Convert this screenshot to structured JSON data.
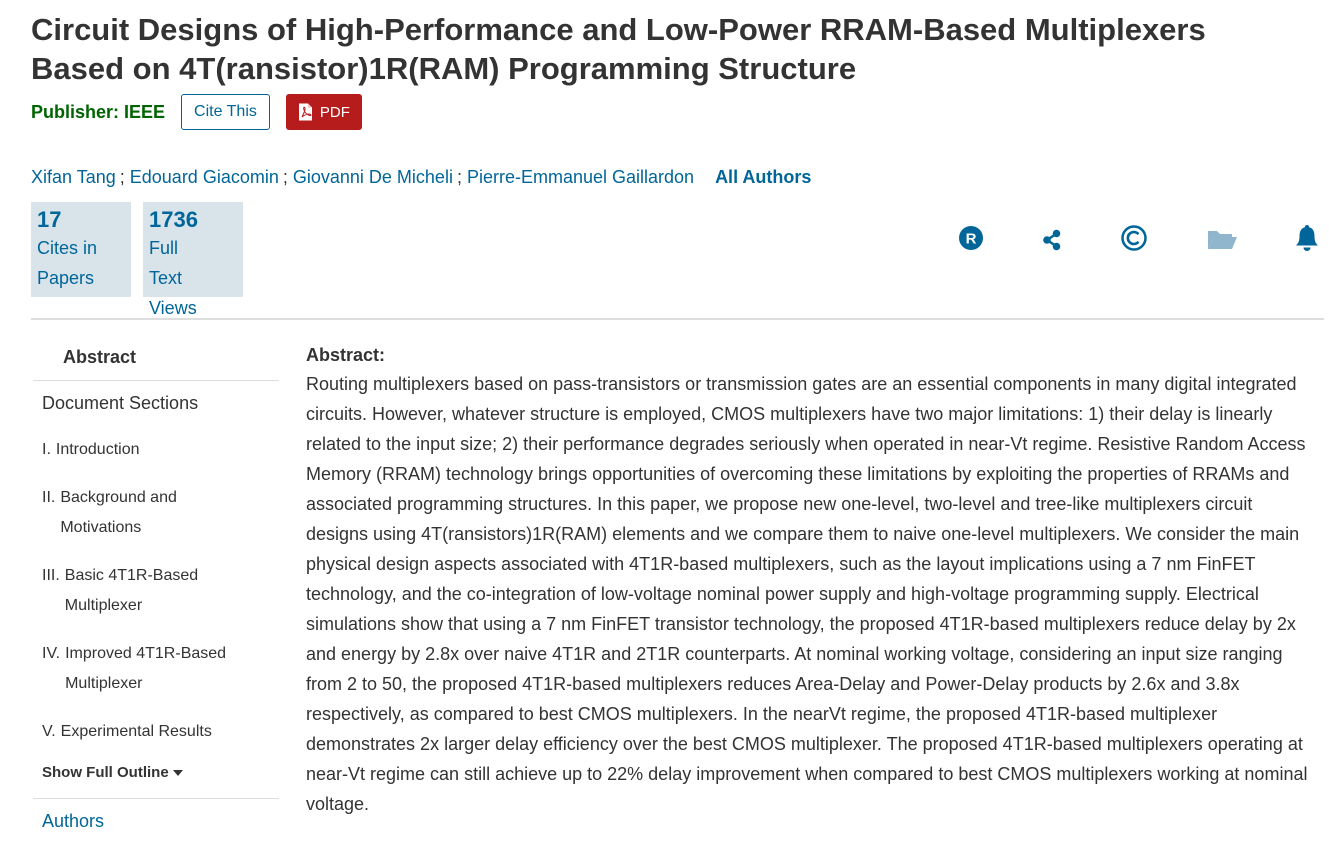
{
  "title": "Circuit Designs of High-Performance and Low-Power RRAM-Based Multiplexers Based on 4T(ransistor)1R(RAM) Programming Structure",
  "publisher": {
    "label": "Publisher:",
    "name": "IEEE"
  },
  "buttons": {
    "cite": "Cite This",
    "pdf": "PDF"
  },
  "authors": [
    "Xifan Tang",
    "Edouard Giacomin",
    "Giovanni De Micheli",
    "Pierre-Emmanuel Gaillardon"
  ],
  "author_separator": ";",
  "all_authors": "All Authors",
  "metrics": {
    "cites": {
      "value": "17",
      "label_line1": "Cites in",
      "label_line2": "Papers"
    },
    "views": {
      "value": "1736",
      "label_line1": "Full",
      "label_line2": "Text Views"
    }
  },
  "action_icons": [
    "rights-icon",
    "share-icon",
    "copyright-icon",
    "folder-icon",
    "bell-icon"
  ],
  "colors": {
    "link": "#006699",
    "publisher": "#006400",
    "pdf_button": "#b71c1c",
    "metric_bg": "#d9e4ea"
  },
  "sidebar": {
    "abstract": "Abstract",
    "document_sections": "Document Sections",
    "sections": [
      {
        "num": "I.",
        "title": "Introduction"
      },
      {
        "num": "II.",
        "title": "Background and Motivations"
      },
      {
        "num": "III.",
        "title": "Basic 4T1R-Based Multiplexer"
      },
      {
        "num": "IV.",
        "title": "Improved 4T1R-Based Multiplexer"
      },
      {
        "num": "V.",
        "title": "Experimental Results"
      }
    ],
    "show_full_outline": "Show Full Outline",
    "authors": "Authors"
  },
  "abstract": {
    "heading": "Abstract:",
    "text": "Routing multiplexers based on pass-transistors or transmission gates are an essential components in many digital integrated circuits. However, whatever structure is employed, CMOS multiplexers have two major limitations: 1) their delay is linearly related to the input size; 2) their performance degrades seriously when operated in near-Vt regime. Resistive Random Access Memory (RRAM) technology brings opportunities of overcoming these limitations by exploiting the properties of RRAMs and associated programming structures. In this paper, we propose new one-level, two-level and tree-like multiplexers circuit designs using 4T(ransistors)1R(RAM) elements and we compare them to naive one-level multiplexers. We consider the main physical design aspects associated with 4T1R-based multiplexers, such as the layout implications using a 7 nm FinFET technology, and the co-integration of low-voltage nominal power supply and high-voltage programming supply. Electrical simulations show that using a 7 nm FinFET transistor technology, the proposed 4T1R-based multiplexers reduce delay by 2x and energy by 2.8x over naive 4T1R and 2T1R counterparts. At nominal working voltage, considering an input size ranging from 2 to 50, the proposed 4T1R-based multiplexers reduces Area-Delay and Power-Delay products by 2.6x and 3.8x respectively, as compared to best CMOS multiplexers. In the nearVt regime, the proposed 4T1R-based multiplexer demonstrates 2x larger delay efficiency over the best CMOS multiplexer. The proposed 4T1R-based multiplexers operating at near-Vt regime can still achieve up to 22% delay improvement when compared to best CMOS multiplexers working at nominal voltage."
  }
}
